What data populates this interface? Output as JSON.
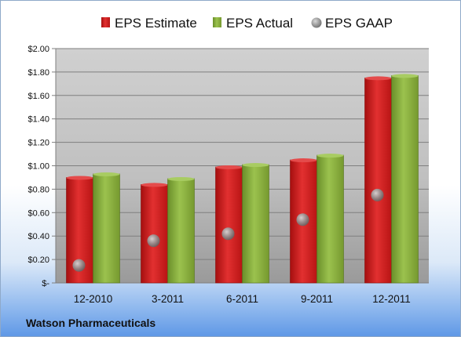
{
  "chart_data": {
    "type": "bar",
    "categories": [
      "12-2010",
      "3-2011",
      "6-2011",
      "9-2011",
      "12-2011"
    ],
    "series": [
      {
        "name": "EPS Estimate",
        "type": "bar",
        "color": "#cc1a1a",
        "values": [
          0.9,
          0.84,
          0.99,
          1.05,
          1.75
        ]
      },
      {
        "name": "EPS Actual",
        "type": "bar",
        "color": "#84ab3c",
        "values": [
          0.93,
          0.89,
          1.01,
          1.09,
          1.77
        ]
      },
      {
        "name": "EPS GAAP",
        "type": "point",
        "color": "#8a8a8a",
        "values": [
          0.15,
          0.36,
          0.42,
          0.54,
          0.75
        ]
      }
    ],
    "y_ticks": [
      "$-",
      "$0.20",
      "$0.40",
      "$0.60",
      "$0.80",
      "$1.00",
      "$1.20",
      "$1.40",
      "$1.60",
      "$1.80",
      "$2.00"
    ],
    "ylim": [
      0,
      2.0
    ],
    "grid": true,
    "legend": "top",
    "footer": "Watson Pharmaceuticals"
  }
}
